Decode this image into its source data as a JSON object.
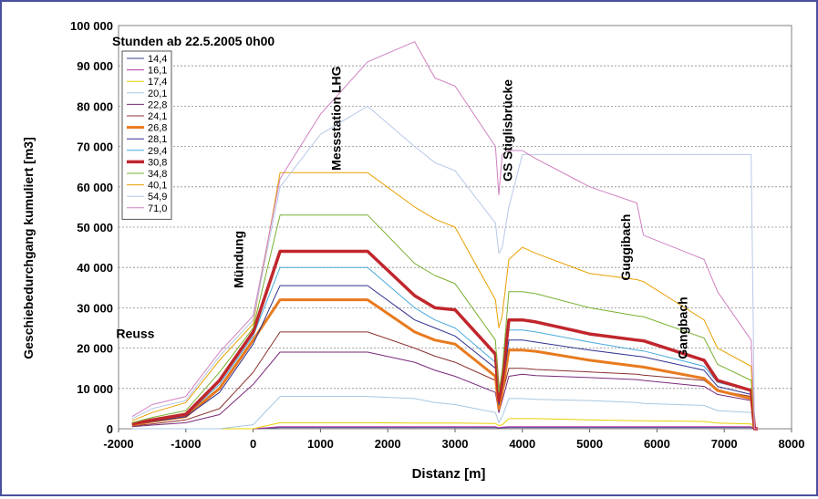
{
  "chart_data": {
    "type": "line",
    "title": "Stunden ab 22.5.2005 0h00",
    "xlabel": "Distanz [m]",
    "ylabel": "Geschiebedurchgang kumuliert [m3]",
    "xlim": [
      -2000,
      8000
    ],
    "ylim": [
      0,
      100000
    ],
    "xticks": [
      -2000,
      -1000,
      0,
      1000,
      2000,
      3000,
      4000,
      5000,
      6000,
      7000,
      8000
    ],
    "xtick_labels": [
      "-2000",
      "-1000",
      "0",
      "1000",
      "2000",
      "3000",
      "4000",
      "5000",
      "6000",
      "7000",
      "8000"
    ],
    "yticks": [
      0,
      10000,
      20000,
      30000,
      40000,
      50000,
      60000,
      70000,
      80000,
      90000,
      100000
    ],
    "ytick_labels": [
      "0",
      "10 000",
      "20 000",
      "30 000",
      "40 000",
      "50 000",
      "60 000",
      "70 000",
      "80 000",
      "90 000",
      "100 000"
    ],
    "grid": "horizontal",
    "legend_position": "top-left",
    "annotations": [
      {
        "text": "Reuss",
        "x": -1750,
        "y": 22500,
        "rotate": 0
      },
      {
        "text": "Mündung",
        "x": -150,
        "y": 42000,
        "rotate": -90
      },
      {
        "text": "Messstation LHG",
        "x": 1300,
        "y": 77000,
        "rotate": -90
      },
      {
        "text": "GS Stiglisbrücke",
        "x": 3850,
        "y": 74000,
        "rotate": -90
      },
      {
        "text": "Guggibach",
        "x": 5600,
        "y": 45000,
        "rotate": -90
      },
      {
        "text": "Gangbach",
        "x": 6450,
        "y": 25000,
        "rotate": -90
      }
    ],
    "x": [
      -1800,
      -1500,
      -1000,
      -500,
      0,
      400,
      1000,
      1700,
      2400,
      2700,
      3000,
      3600,
      3650,
      3700,
      3800,
      4000,
      4200,
      5000,
      5700,
      5800,
      6700,
      6900,
      7400,
      7450,
      7500
    ],
    "series": [
      {
        "name": "14,4",
        "color": "#3b3f8f",
        "width": 1,
        "values": [
          0,
          0,
          0,
          0,
          0,
          300,
          300,
          300,
          300,
          300,
          300,
          300,
          200,
          250,
          300,
          300,
          300,
          300,
          300,
          300,
          300,
          300,
          300,
          0,
          0
        ]
      },
      {
        "name": "16,1",
        "color": "#b03aa0",
        "width": 1,
        "values": [
          0,
          0,
          0,
          0,
          0,
          500,
          500,
          500,
          500,
          500,
          500,
          500,
          300,
          400,
          500,
          500,
          500,
          500,
          500,
          500,
          500,
          500,
          500,
          0,
          0
        ]
      },
      {
        "name": "17,4",
        "color": "#e8d000",
        "width": 1,
        "values": [
          0,
          0,
          0,
          0,
          0,
          1500,
          1500,
          1500,
          1400,
          1400,
          1400,
          1300,
          800,
          1000,
          2500,
          2500,
          2500,
          2200,
          2000,
          2000,
          1800,
          1400,
          1200,
          0,
          0
        ]
      },
      {
        "name": "20,1",
        "color": "#a8c8e0",
        "width": 1,
        "values": [
          0,
          0,
          0,
          0,
          1000,
          8000,
          8000,
          8000,
          7500,
          6500,
          6000,
          4000,
          1500,
          3000,
          7500,
          7500,
          7300,
          7000,
          6500,
          6300,
          5800,
          4500,
          4000,
          0,
          0
        ]
      },
      {
        "name": "22,8",
        "color": "#7a2a7a",
        "width": 1,
        "values": [
          500,
          900,
          1500,
          3500,
          11000,
          19000,
          19000,
          19000,
          16500,
          14500,
          13000,
          9000,
          4000,
          7000,
          13000,
          13500,
          13200,
          12700,
          12200,
          12000,
          10500,
          8500,
          7000,
          0,
          0
        ]
      },
      {
        "name": "24,1",
        "color": "#8a3030",
        "width": 1,
        "values": [
          700,
          1200,
          2200,
          5000,
          14000,
          24000,
          24000,
          24000,
          20000,
          18000,
          16500,
          12000,
          5000,
          8500,
          15000,
          15000,
          14700,
          14100,
          13500,
          13300,
          12000,
          9500,
          8000,
          0,
          0
        ]
      },
      {
        "name": "26,8",
        "color": "#e87a1e",
        "width": 3,
        "values": [
          1000,
          1800,
          3000,
          10000,
          22000,
          32000,
          32000,
          32000,
          24000,
          22000,
          21000,
          13000,
          5000,
          9000,
          19500,
          19500,
          19200,
          17000,
          15500,
          15300,
          12500,
          9500,
          7500,
          0,
          0
        ]
      },
      {
        "name": "28,1",
        "color": "#303090",
        "width": 1,
        "values": [
          1000,
          1800,
          3000,
          9000,
          21000,
          35500,
          35500,
          35500,
          27000,
          25000,
          23000,
          15000,
          6000,
          10000,
          22000,
          22000,
          21500,
          19500,
          18000,
          17800,
          14500,
          10500,
          8500,
          0,
          0
        ]
      },
      {
        "name": "29,4",
        "color": "#4aaadc",
        "width": 1,
        "values": [
          1100,
          2000,
          3300,
          11000,
          23000,
          40000,
          40000,
          40000,
          30000,
          27000,
          25000,
          16500,
          7000,
          11500,
          24500,
          24500,
          24000,
          21500,
          19500,
          19300,
          15500,
          11500,
          9500,
          0,
          0
        ]
      },
      {
        "name": "30,8",
        "color": "#c0262c",
        "width": 3.5,
        "values": [
          1200,
          2200,
          3600,
          12000,
          24000,
          44000,
          44000,
          44000,
          33000,
          30000,
          29500,
          18500,
          7000,
          12000,
          27000,
          27000,
          26500,
          23500,
          22000,
          21800,
          17000,
          12000,
          9500,
          0,
          0
        ]
      },
      {
        "name": "34,8",
        "color": "#7ab030",
        "width": 1,
        "values": [
          1500,
          2800,
          4500,
          14000,
          25000,
          53000,
          53000,
          53000,
          41000,
          38000,
          36000,
          22000,
          9000,
          14500,
          34000,
          34000,
          33500,
          30000,
          28000,
          27800,
          22500,
          16000,
          12000,
          0,
          0
        ]
      },
      {
        "name": "40,1",
        "color": "#e8a000",
        "width": 1,
        "values": [
          2000,
          4000,
          6500,
          17000,
          26000,
          63500,
          63500,
          63500,
          55000,
          52000,
          50000,
          32000,
          25000,
          28000,
          42000,
          45000,
          43500,
          38500,
          37000,
          36500,
          27000,
          20000,
          15500,
          0,
          0
        ]
      },
      {
        "name": "54,9",
        "color": "#b8c8e8",
        "width": 1,
        "values": [
          2500,
          5000,
          7000,
          18000,
          27000,
          60000,
          73000,
          80000,
          70000,
          66000,
          64000,
          51000,
          43500,
          45000,
          55000,
          68000,
          68000,
          68000,
          68000,
          68000,
          68000,
          68000,
          68000,
          0,
          0
        ]
      },
      {
        "name": "71,0",
        "color": "#d080c0",
        "width": 1,
        "values": [
          3000,
          6000,
          8000,
          19000,
          28000,
          62000,
          78000,
          91000,
          96000,
          87000,
          85000,
          70000,
          58000,
          68000,
          69000,
          69000,
          67000,
          60000,
          56000,
          48000,
          42000,
          34000,
          22000,
          0,
          0
        ]
      }
    ]
  }
}
